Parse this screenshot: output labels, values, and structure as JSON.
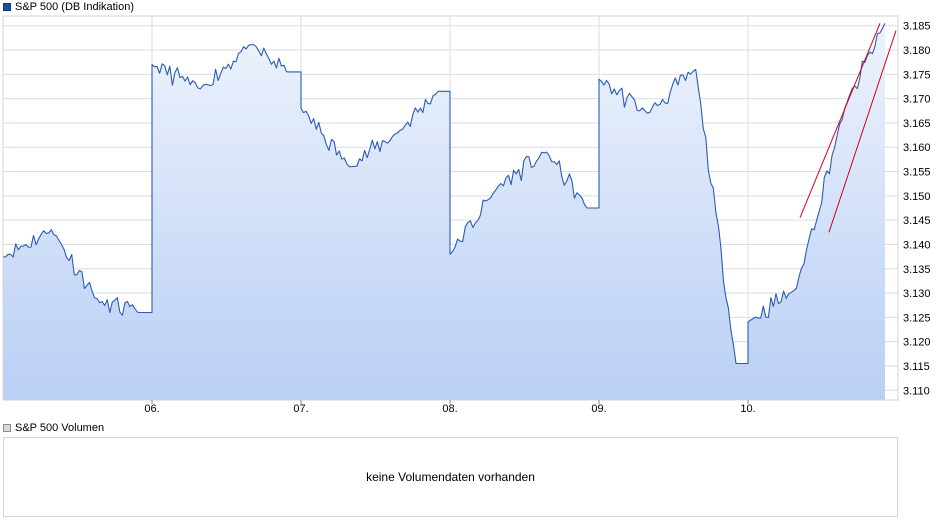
{
  "legends": {
    "price": "S&P 500 (DB Indikation)",
    "volume": "S&P 500 Volumen"
  },
  "volume": {
    "message": "keine Volumendaten vorhanden"
  },
  "colors": {
    "line": "#2a5cb4",
    "fill_top": "#eef3fc",
    "fill_bottom": "#b9cff5",
    "trendline": "#d9001b",
    "grid": "#d8dde6"
  },
  "chart_data": {
    "type": "area",
    "series": [
      {
        "name": "S&P 500 (DB Indikation)",
        "x": [
          "05. 09:00",
          "05. 12:00",
          "05. 15:00",
          "05. 17:30",
          "06. 09:00",
          "06. 12:00",
          "06. 15:00",
          "06. 17:30",
          "07. 09:00",
          "07. 12:00",
          "07. 15:00",
          "07. 17:30",
          "08. 09:00",
          "08. 12:00",
          "08. 15:00",
          "08. 17:30",
          "09. 09:00",
          "09. 12:00",
          "09. 15:00",
          "09. 17:30",
          "10. 09:00",
          "10. 12:00",
          "10. 15:00",
          "10. 17:30"
        ],
        "values": [
          3137.5,
          3143.0,
          3128.0,
          3126.0,
          3177.0,
          3172.0,
          3181.0,
          3175.5,
          3168.0,
          3156.0,
          3163.0,
          3171.5,
          3138.0,
          3152.0,
          3159.0,
          3147.5,
          3174.0,
          3167.0,
          3176.0,
          3115.5,
          3124.0,
          3131.0,
          3168.0,
          3185.5
        ]
      }
    ],
    "x_tick_labels": [
      "06.",
      "07.",
      "08.",
      "09.",
      "10."
    ],
    "y_tick_labels": [
      "3.110",
      "3.115",
      "3.120",
      "3.125",
      "3.130",
      "3.135",
      "3.140",
      "3.145",
      "3.150",
      "3.155",
      "3.160",
      "3.165",
      "3.170",
      "3.175",
      "3.180",
      "3.185"
    ],
    "ylim": [
      3108,
      3187
    ],
    "y_axis_side": "right",
    "grid": true,
    "legend_placement": "top-left",
    "annotations": [
      {
        "type": "trendline",
        "color": "red",
        "from": {
          "day": "10.",
          "value": 3145.5
        },
        "to": {
          "day": "10.",
          "value": 3185.5
        }
      },
      {
        "type": "trendline",
        "color": "red",
        "from": {
          "day": "10.",
          "value": 3142.5
        },
        "to": {
          "day": "10.",
          "value": 3184.0
        }
      }
    ]
  }
}
